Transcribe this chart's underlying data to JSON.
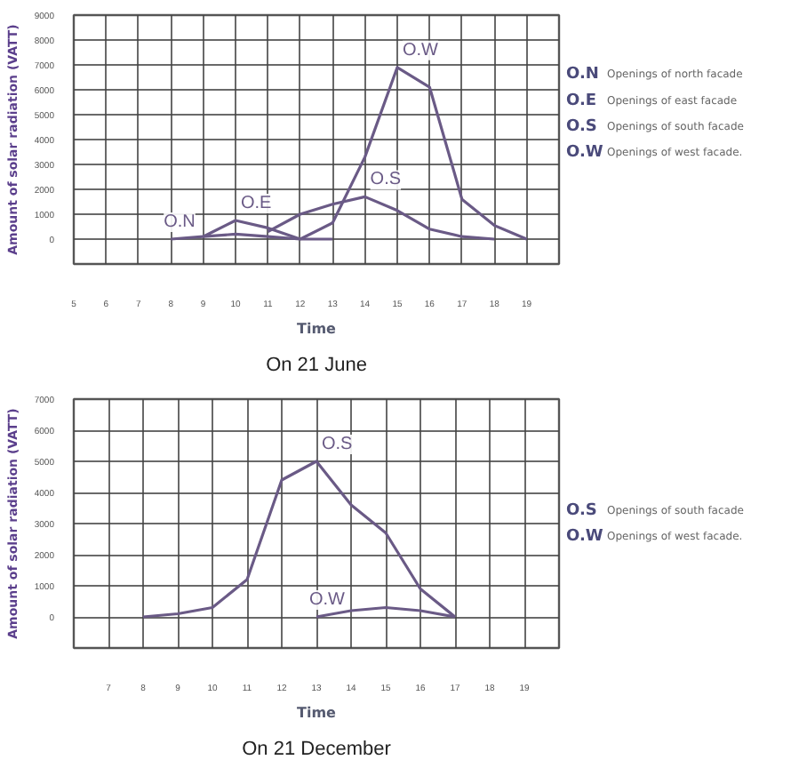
{
  "chart_data": [
    {
      "type": "line",
      "title": "On 21 June",
      "xlabel": "Time",
      "ylabel": "Amount of solar radiation (VATT)",
      "xlim": [
        5,
        20
      ],
      "xticks": [
        5,
        6,
        7,
        8,
        9,
        10,
        11,
        12,
        13,
        14,
        15,
        16,
        17,
        18,
        19
      ],
      "ylim": [
        -1000,
        9000
      ],
      "yticks": [
        0,
        1000,
        2000,
        3000,
        4000,
        5000,
        6000,
        7000,
        8000,
        9000
      ],
      "grid": true,
      "marker": "none",
      "line_style": "solid",
      "series": [
        {
          "name": "O.N",
          "color": "#6a5a86",
          "x": [
            8,
            9,
            10,
            11,
            12,
            13
          ],
          "values": [
            0,
            100,
            200,
            100,
            0,
            0
          ]
        },
        {
          "name": "O.E",
          "color": "#6a5a86",
          "x": [
            9,
            10,
            11,
            12
          ],
          "values": [
            100,
            750,
            450,
            0
          ]
        },
        {
          "name": "O.S",
          "color": "#6a5a86",
          "x": [
            11,
            12,
            13,
            14,
            15,
            16,
            17,
            18
          ],
          "values": [
            300,
            1000,
            1400,
            1700,
            1150,
            400,
            100,
            0
          ]
        },
        {
          "name": "O.W",
          "color": "#6a5a86",
          "x": [
            12,
            13,
            14,
            15,
            16,
            17,
            18,
            19
          ],
          "values": [
            0,
            650,
            3300,
            6900,
            6100,
            1600,
            550,
            0
          ]
        }
      ],
      "annotations": [
        "O.N Openings of north facade",
        "O.E Openings of east facade",
        "O.S Openings of south facade",
        "O.W Openings of west facade."
      ]
    },
    {
      "type": "line",
      "title": "On 21 December",
      "xlabel": "Time",
      "ylabel": "Amount of solar radiation (VATT)",
      "xlim": [
        6,
        20
      ],
      "xticks": [
        7,
        8,
        9,
        10,
        11,
        12,
        13,
        14,
        15,
        16,
        17,
        18,
        19
      ],
      "ylim": [
        -1000,
        7000
      ],
      "yticks": [
        0,
        1000,
        2000,
        3000,
        4000,
        5000,
        6000,
        7000
      ],
      "grid": true,
      "marker": "none",
      "line_style": "solid",
      "series": [
        {
          "name": "O.S",
          "color": "#6a5a86",
          "x": [
            8,
            9,
            10,
            11,
            12,
            13,
            14,
            15,
            16,
            17
          ],
          "values": [
            0,
            100,
            300,
            1200,
            4400,
            5000,
            3600,
            2700,
            900,
            0
          ]
        },
        {
          "name": "O.W",
          "color": "#6a5a86",
          "x": [
            13,
            14,
            15,
            16,
            17
          ],
          "values": [
            0,
            200,
            300,
            200,
            0
          ]
        }
      ],
      "annotations": [
        "O.S Openings of south facade",
        "O.W Openings of west facade."
      ]
    }
  ]
}
